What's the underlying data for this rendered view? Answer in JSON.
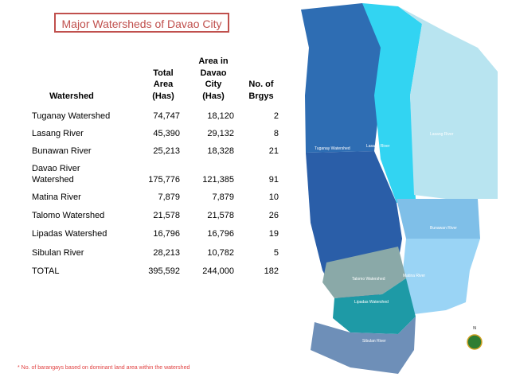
{
  "title": "Major Watersheds of Davao City",
  "table": {
    "headers": [
      [
        "Watershed"
      ],
      [
        "Total",
        "Area",
        "(Has)"
      ],
      [
        "Area in",
        "Davao",
        "City",
        "(Has)"
      ],
      [
        "No. of",
        "Brgys"
      ]
    ],
    "rows": [
      [
        "Tuganay Watershed",
        "74,747",
        "18,120",
        "2"
      ],
      [
        "Lasang River",
        "45,390",
        "29,132",
        "8"
      ],
      [
        "Bunawan River",
        "25,213",
        "18,328",
        "21"
      ],
      [
        "Davao River Watershed",
        "175,776",
        "121,385",
        "91"
      ],
      [
        "Matina River",
        "7,879",
        "7,879",
        "10"
      ],
      [
        "Talomo Watershed",
        "21,578",
        "21,578",
        "26"
      ],
      [
        "Lipadas Watershed",
        "16,796",
        "16,796",
        "19"
      ],
      [
        "Sibulan River",
        "28,213",
        "10,782",
        "5"
      ],
      [
        "TOTAL",
        "395,592",
        "244,000",
        "182"
      ]
    ]
  },
  "footnote": "* No. of barangays based on dominant land area within the watershed",
  "map": {
    "labels": [
      "Tuganay Watershed",
      "Lasang River",
      "Lasang River",
      "Bunawan River",
      "Talomo Watershed",
      "Matina River",
      "Lipadas Watershed",
      "Sibulan River"
    ],
    "compass": "N"
  }
}
